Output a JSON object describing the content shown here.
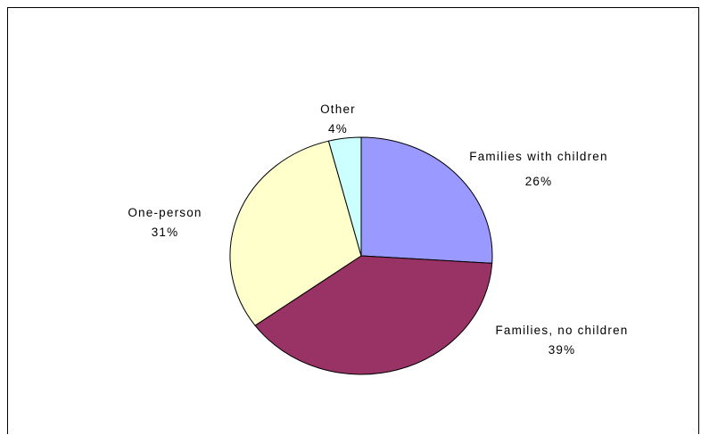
{
  "chart_data": {
    "type": "pie",
    "title": "",
    "slices": [
      {
        "label": "Families with children",
        "value": 26,
        "value_label": "26%",
        "color": "#9999ff"
      },
      {
        "label": "Families, no children",
        "value": 39,
        "value_label": "39%",
        "color": "#993366"
      },
      {
        "label": "One-person",
        "value": 31,
        "value_label": "31%",
        "color": "#ffffcc"
      },
      {
        "label": "Other",
        "value": 4,
        "value_label": "4%",
        "color": "#ccffff"
      }
    ],
    "start_angle_deg": 0,
    "direction": "clockwise",
    "legend": "none",
    "border_color": "#000000"
  }
}
